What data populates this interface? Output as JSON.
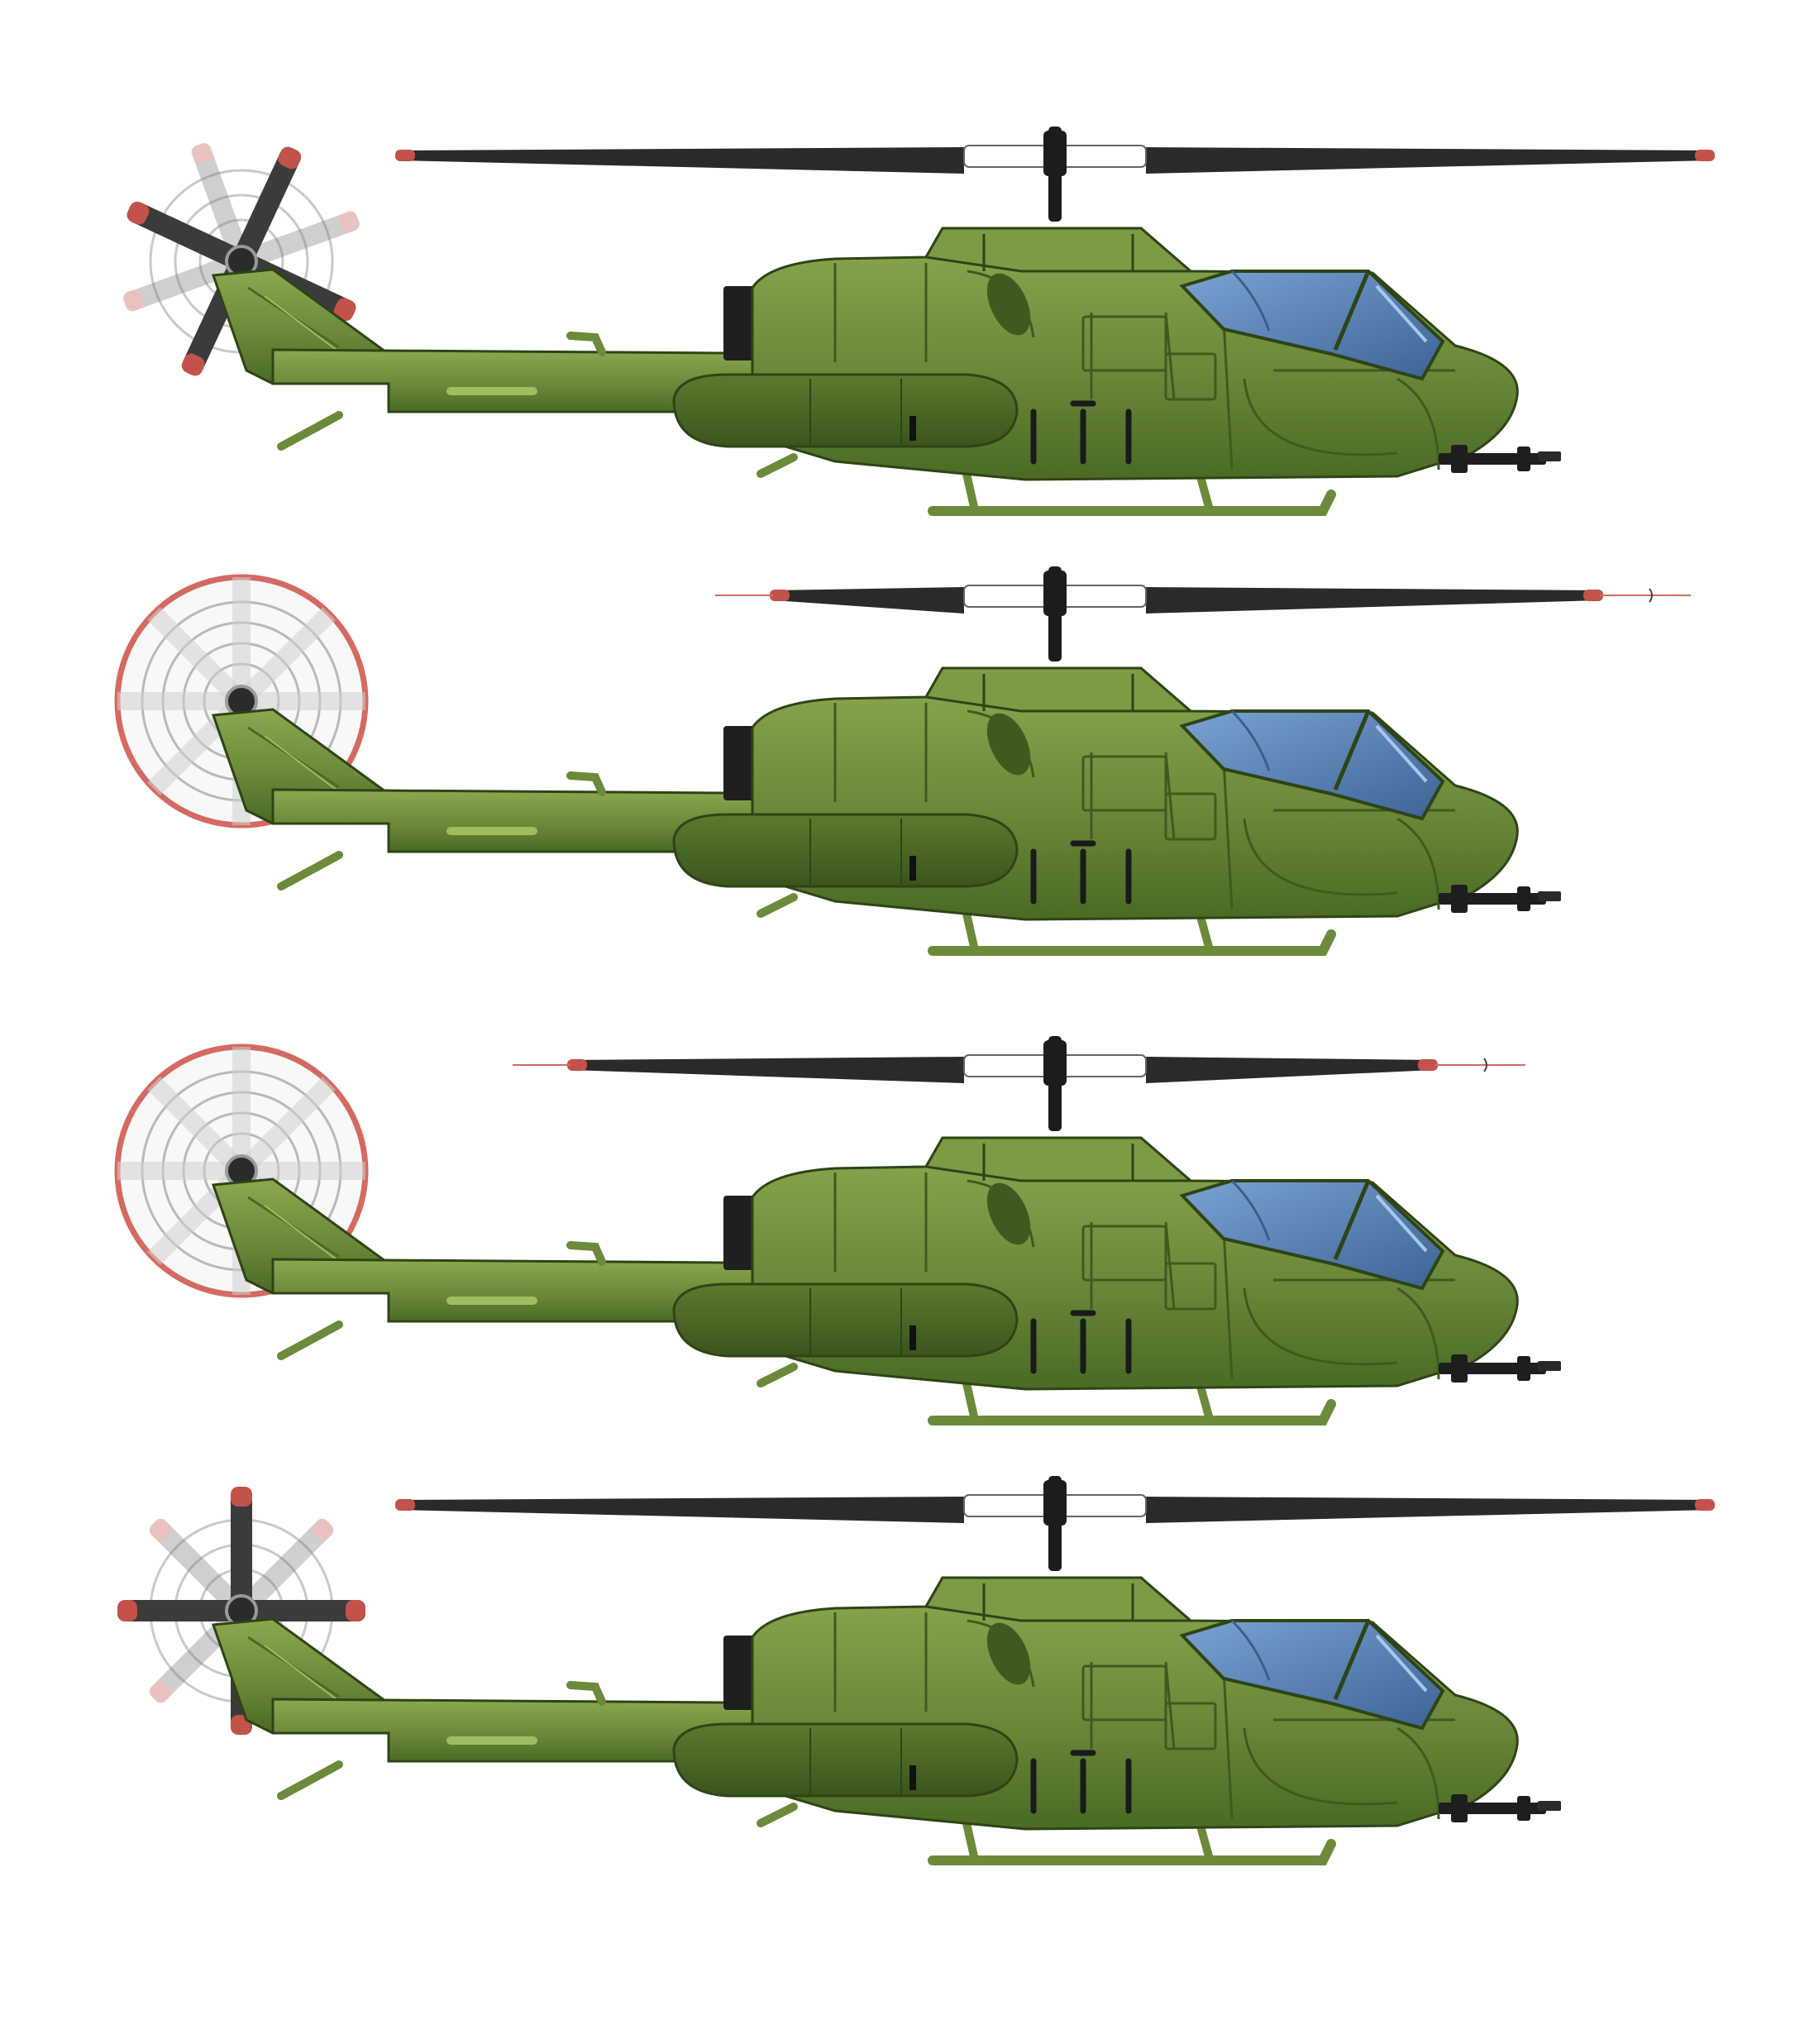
{
  "sprite_sheet": {
    "subject": "attack-helicopter",
    "frame_count": 4,
    "colors": {
      "body_main": "#6b8a3a",
      "body_light": "#88a94f",
      "body_dark": "#3f5a1f",
      "body_outline": "#2e4416",
      "canopy": "#5a88bd",
      "canopy_dark": "#3a5f8c",
      "rotor_blade": "#2a2a2a",
      "rotor_hub": "#c8c8c8",
      "tip_red": "#c2524a",
      "blur_ring": "#d46a62",
      "gun": "#1e1e1e"
    },
    "frames": [
      {
        "id": "frame-1",
        "tail_rotor_state": "blades",
        "tail_rotor_angle": 25,
        "main_rotor_span": "full"
      },
      {
        "id": "frame-2",
        "tail_rotor_state": "blur",
        "tail_rotor_angle": 0,
        "main_rotor_span": "medium"
      },
      {
        "id": "frame-3",
        "tail_rotor_state": "blur",
        "tail_rotor_angle": 0,
        "main_rotor_span": "short"
      },
      {
        "id": "frame-4",
        "tail_rotor_state": "blades",
        "tail_rotor_angle": 0,
        "main_rotor_span": "full"
      }
    ]
  }
}
